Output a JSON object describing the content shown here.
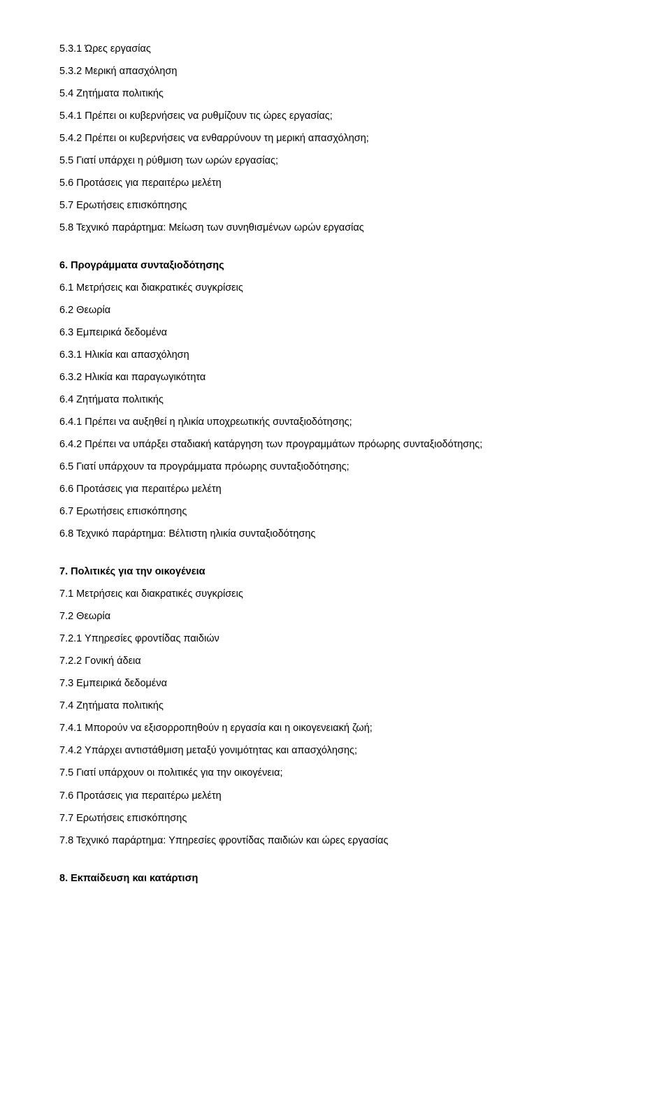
{
  "sections": {
    "s5": {
      "l1": "5.3.1 Ώρες εργασίας",
      "l2": "5.3.2 Μερική απασχόληση",
      "l3": "5.4 Ζητήματα πολιτικής",
      "l4": "5.4.1 Πρέπει οι κυβερνήσεις να ρυθμίζουν τις ώρες εργασίας;",
      "l5": "5.4.2 Πρέπει οι κυβερνήσεις να ενθαρρύνουν τη μερική απασχόληση;",
      "l6": "5.5 Γιατί υπάρχει η ρύθμιση των ωρών εργασίας;",
      "l7": "5.6 Προτάσεις για περαιτέρω μελέτη",
      "l8": "5.7  Ερωτήσεις επισκόπησης",
      "l9": "5.8 Τεχνικό παράρτημα: Μείωση των συνηθισμένων ωρών εργασίας"
    },
    "s6": {
      "title": "6. Προγράμματα συνταξιοδότησης",
      "l1": "6.1 Μετρήσεις και διακρατικές συγκρίσεις",
      "l2": "6.2 Θεωρία",
      "l3": "6.3 Εμπειρικά δεδομένα",
      "l4": "6.3.1 Ηλικία και απασχόληση",
      "l5": "6.3.2 Ηλικία και παραγωγικότητα",
      "l6": "6.4 Ζητήματα πολιτικής",
      "l7": "6.4.1 Πρέπει να αυξηθεί η ηλικία υποχρεωτικής συνταξιοδότησης;",
      "l8": "6.4.2 Πρέπει να υπάρξει σταδιακή κατάργηση των προγραμμάτων πρόωρης συνταξιοδότησης;",
      "l9": "6.5 Γιατί υπάρχουν τα προγράμματα πρόωρης συνταξιοδότησης;",
      "l10": "6.6 Προτάσεις για περαιτέρω μελέτη",
      "l11": "6.7  Ερωτήσεις επισκόπησης",
      "l12": "6.8 Τεχνικό παράρτημα: Βέλτιστη ηλικία συνταξιοδότησης"
    },
    "s7": {
      "title": "7. Πολιτικές για την οικογένεια",
      "l1": "7.1 Μετρήσεις και διακρατικές συγκρίσεις",
      "l2": "7.2 Θεωρία",
      "l3": "7.2.1 Υπηρεσίες φροντίδας παιδιών",
      "l4": "7.2.2 Γονική άδεια",
      "l5": "7.3 Εμπειρικά δεδομένα",
      "l6": "7.4 Ζητήματα πολιτικής",
      "l7": "7.4.1 Μπορούν να εξισορροπηθούν η εργασία και η οικογενειακή ζωή;",
      "l8": "7.4.2 Υπάρχει αντιστάθμιση μεταξύ γονιμότητας και απασχόλησης;",
      "l9": "7.5 Γιατί υπάρχουν οι πολιτικές για την οικογένεια;",
      "l10": "7.6 Προτάσεις για περαιτέρω μελέτη",
      "l11": "7.7  Ερωτήσεις επισκόπησης",
      "l12": "7.8 Τεχνικό παράρτημα: Υπηρεσίες φροντίδας παιδιών και ώρες εργασίας"
    },
    "s8": {
      "title": "8. Εκπαίδευση και κατάρτιση"
    }
  }
}
